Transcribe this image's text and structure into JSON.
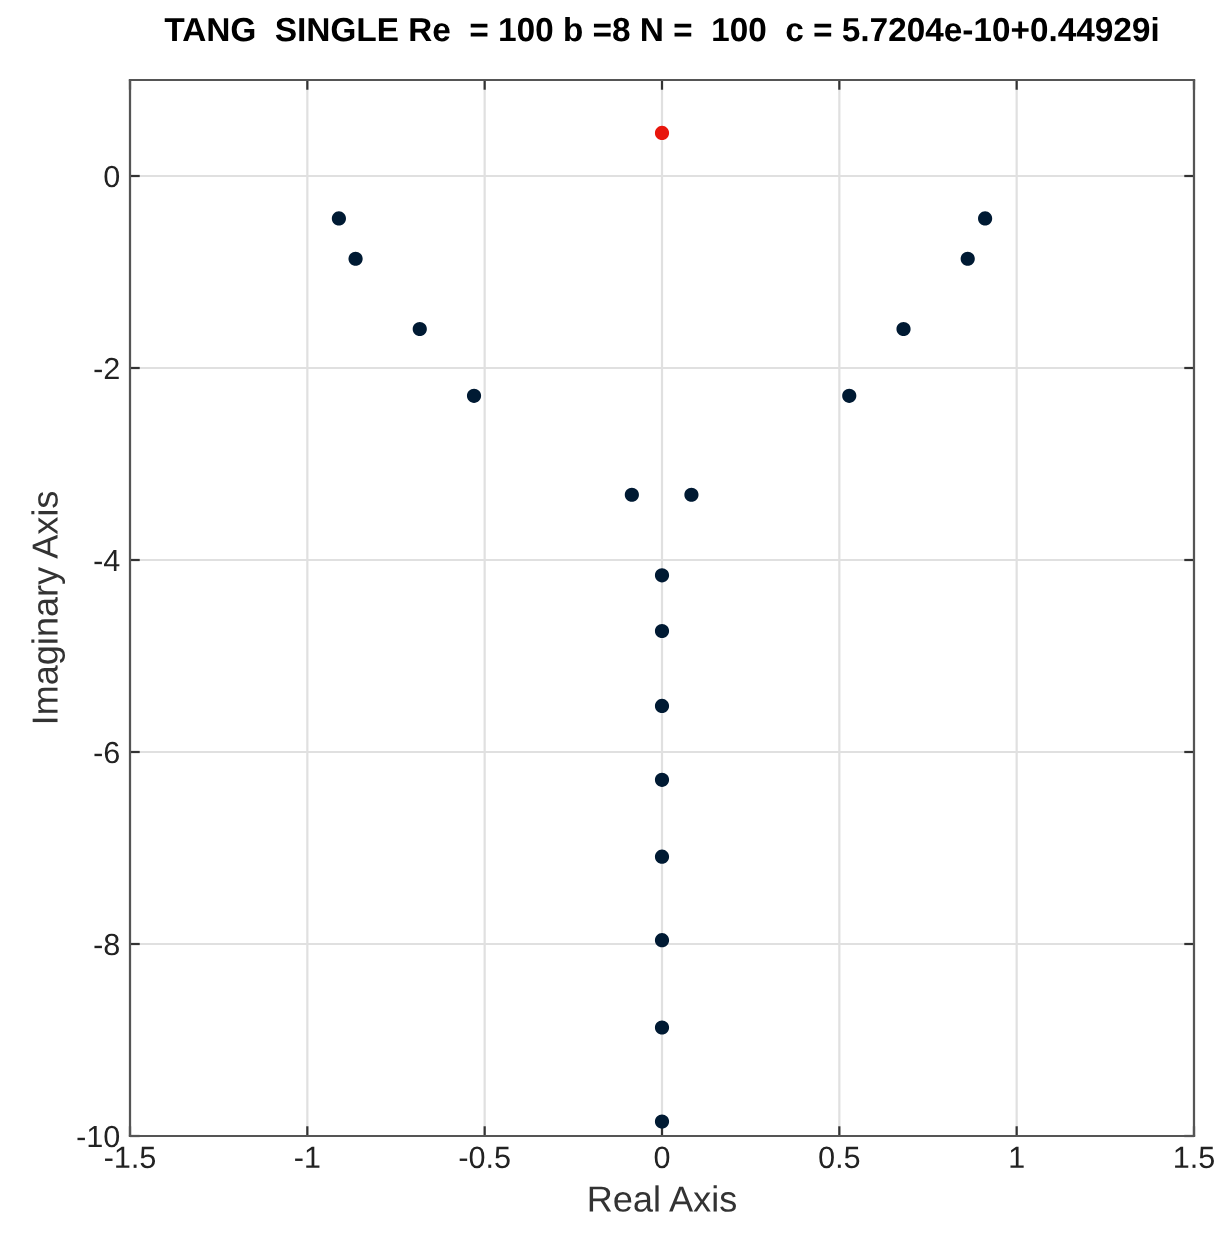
{
  "chart_data": {
    "type": "scatter",
    "title": "TANG  SINGLE Re  = 100 b =8 N =  100  c = 5.7204e-10+0.44929i",
    "xlabel": "Real Axis",
    "ylabel": "Imaginary Axis",
    "series": [
      {
        "color": "#001a33",
        "x": [
          -0.911,
          -0.864,
          -0.683,
          -0.53,
          -0.085,
          0.083,
          0.528,
          0.681,
          0.862,
          0.911,
          0,
          0,
          0,
          0,
          0,
          0,
          0,
          0
        ],
        "values": [
          -0.442,
          -0.862,
          -1.594,
          -2.29,
          -3.32,
          -3.32,
          -2.29,
          -1.594,
          -0.862,
          -0.442,
          -4.16,
          -4.74,
          -5.52,
          -6.29,
          -7.09,
          -7.96,
          -8.87,
          -9.85
        ]
      },
      {
        "color": "#e8160c",
        "x": [
          0
        ],
        "values": [
          0.449
        ]
      }
    ],
    "xlim": [
      -1.5,
      1.5
    ],
    "xticks": [
      -1.5,
      -1,
      -0.5,
      0,
      0.5,
      1,
      1.5
    ],
    "ylim": [
      -10,
      1
    ],
    "yticks": [
      -10,
      -8,
      -6,
      -4,
      -2,
      0
    ],
    "grid": true,
    "marker": "circle"
  }
}
